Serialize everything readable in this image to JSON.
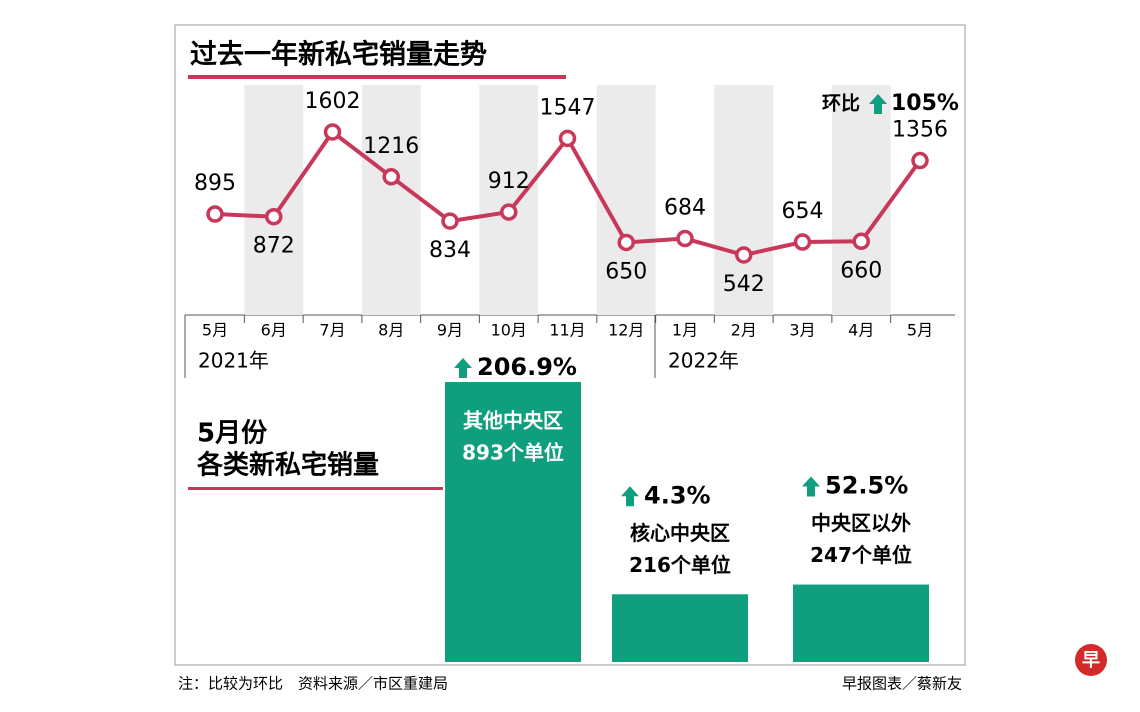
{
  "chart_data": [
    {
      "type": "line",
      "title": "过去一年新私宅销量走势",
      "categories": [
        "5月",
        "6月",
        "7月",
        "8月",
        "9月",
        "10月",
        "11月",
        "12月",
        "1月",
        "2月",
        "3月",
        "4月",
        "5月"
      ],
      "values": [
        895,
        872,
        1602,
        1216,
        834,
        912,
        1547,
        650,
        684,
        542,
        654,
        660,
        1356
      ],
      "color": "#c8385a",
      "year_labels": [
        "2021年",
        "2022年"
      ],
      "annotation": {
        "label": "环比",
        "change": "105%"
      }
    },
    {
      "type": "bar",
      "title": [
        "5月份",
        "各类新私宅销量"
      ],
      "categories": [
        "其他中央区",
        "核心中央区",
        "中央区以外"
      ],
      "values": [
        893,
        216,
        247
      ],
      "value_labels": [
        "893个单位",
        "216个单位",
        "247个单位"
      ],
      "changes": [
        "206.9%",
        "4.3%",
        "52.5%"
      ],
      "color": "#0f9f7e"
    }
  ],
  "footer": {
    "note": "注：比较为环比　资料来源／市区重建局",
    "credit": "早报图表／蔡新友",
    "logo": "早"
  }
}
